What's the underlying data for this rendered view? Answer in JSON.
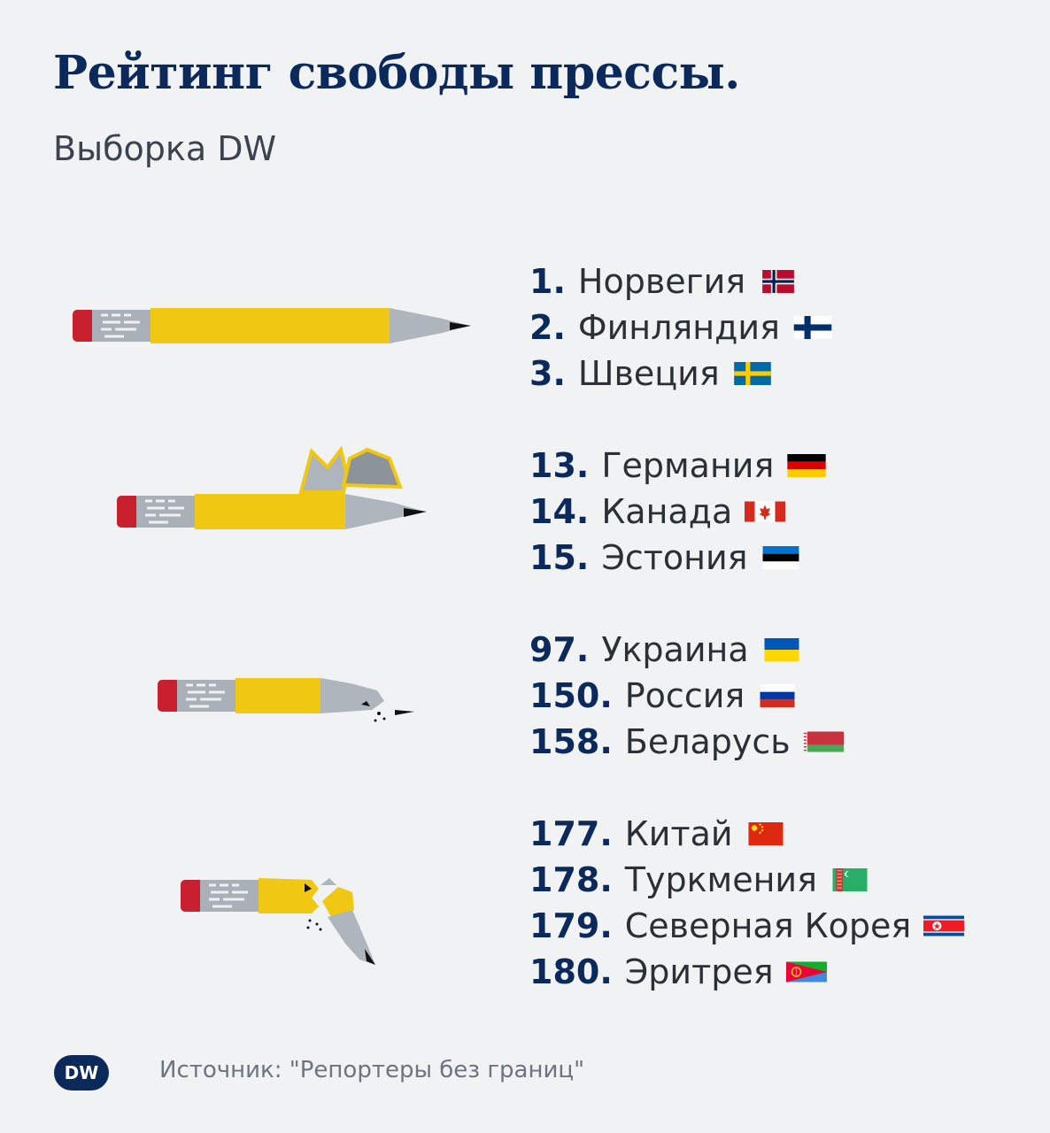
{
  "title": "Рейтинг свободы прессы.",
  "subtitle": "Выборка DW",
  "groups": [
    {
      "rows": [
        {
          "rank": "1.",
          "country": "Норвегия",
          "flag": "norway-flag"
        },
        {
          "rank": "2.",
          "country": "Финляндия",
          "flag": "finland-flag"
        },
        {
          "rank": "3.",
          "country": "Швеция",
          "flag": "sweden-flag"
        }
      ]
    },
    {
      "rows": [
        {
          "rank": "13.",
          "country": "Германия",
          "flag": "germany-flag"
        },
        {
          "rank": "14.",
          "country": "Канада",
          "flag": "canada-flag"
        },
        {
          "rank": "15.",
          "country": "Эстония",
          "flag": "estonia-flag"
        }
      ]
    },
    {
      "rows": [
        {
          "rank": "97.",
          "country": "Украина",
          "flag": "ukraine-flag"
        },
        {
          "rank": "150.",
          "country": "Россия",
          "flag": "russia-flag"
        },
        {
          "rank": "158.",
          "country": "Беларусь",
          "flag": "belarus-flag"
        }
      ]
    },
    {
      "rows": [
        {
          "rank": "177.",
          "country": "Китай",
          "flag": "china-flag"
        },
        {
          "rank": "178.",
          "country": "Туркмения",
          "flag": "turkmenistan-flag"
        },
        {
          "rank": "179.",
          "country": "Северная Корея",
          "flag": "north-korea-flag"
        },
        {
          "rank": "180.",
          "country": "Эритрея",
          "flag": "eritrea-flag"
        }
      ]
    }
  ],
  "logo": "DW",
  "source": "Источник: \"Репортеры без границ\"",
  "colors": {
    "title": "#0b2a5b",
    "pencil_body": "#f0c814",
    "pencil_eraser": "#c8202f",
    "pencil_ferrule": "#a9b0b8",
    "pencil_wood": "#aeb5bd"
  }
}
